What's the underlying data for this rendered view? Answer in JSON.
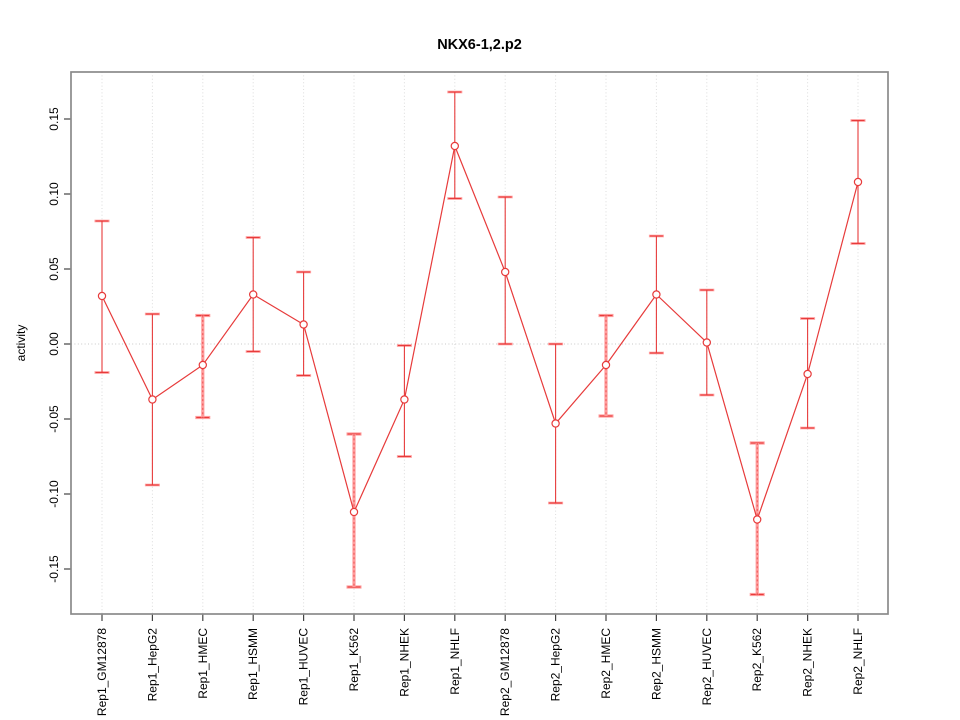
{
  "chart_data": {
    "type": "line",
    "title": "NKX6-1,2.p2",
    "xlabel": "",
    "ylabel": "activity",
    "ylim": [
      -0.181,
      0.182
    ],
    "yticks": [
      -0.15,
      -0.1,
      -0.05,
      0.0,
      0.05,
      0.1,
      0.15
    ],
    "ytick_labels": [
      "-0.15",
      "-0.10",
      "-0.05",
      "0.00",
      "0.05",
      "0.10",
      "0.15"
    ],
    "grid": "dotted vertical gridline at each category; dotted horizontal line at 0; no legend",
    "categories": [
      "Rep1_GM12878",
      "Rep1_HepG2",
      "Rep1_HMEC",
      "Rep1_HSMM",
      "Rep1_HUVEC",
      "Rep1_K562",
      "Rep1_NHEK",
      "Rep1_NHLF",
      "Rep2_GM12878",
      "Rep2_HepG2",
      "Rep2_HMEC",
      "Rep2_HSMM",
      "Rep2_HUVEC",
      "Rep2_K562",
      "Rep2_NHEK",
      "Rep2_NHLF"
    ],
    "series": [
      {
        "name": "activity",
        "marker": "open-circle",
        "values": [
          0.032,
          -0.037,
          -0.014,
          0.033,
          0.013,
          -0.112,
          -0.037,
          0.132,
          0.048,
          -0.053,
          -0.014,
          0.033,
          0.001,
          -0.117,
          -0.02,
          0.108
        ],
        "lower": [
          -0.019,
          -0.094,
          -0.049,
          -0.005,
          -0.021,
          -0.162,
          -0.075,
          0.097,
          0.0,
          -0.106,
          -0.048,
          -0.006,
          -0.034,
          -0.167,
          -0.056,
          0.067
        ],
        "upper": [
          0.082,
          0.02,
          0.019,
          0.071,
          0.048,
          -0.06,
          -0.001,
          0.168,
          0.098,
          0.0,
          0.019,
          0.072,
          0.036,
          -0.066,
          0.017,
          0.149
        ],
        "errorbar_style": [
          "thin",
          "thin",
          "thick",
          "thin",
          "thin",
          "thick",
          "thin",
          "thin",
          "thin",
          "thin",
          "thick",
          "thin",
          "thin",
          "thick",
          "thin",
          "thin"
        ]
      }
    ],
    "colors": {
      "line": "#e73b3b",
      "point": "#e73b3b",
      "errorbar_thick": "#ff9d9d",
      "grid": "#dcdcdc",
      "zero_line": "#c9c9c9",
      "frame": "#8a8a8a",
      "text": "#000000"
    }
  }
}
